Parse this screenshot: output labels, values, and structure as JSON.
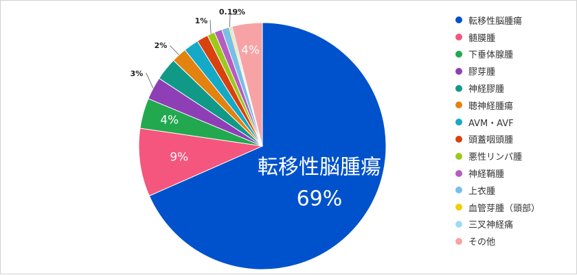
{
  "chart_data": {
    "type": "pie",
    "legend_position": "right",
    "slices": [
      {
        "name": "転移性脳腫瘍",
        "value": 69,
        "label": "転移性脳腫瘍",
        "value_label": "69%",
        "color": "#0052cc"
      },
      {
        "name": "髄膜腫",
        "value": 9,
        "value_label": "9%",
        "color": "#f4567d"
      },
      {
        "name": "下垂体腺腫",
        "value": 4,
        "value_label": "4%",
        "color": "#22a84f"
      },
      {
        "name": "膠芽腫",
        "value": 3,
        "value_label": "3%",
        "color": "#8e3fb5"
      },
      {
        "name": "神経膠腫",
        "value": 3,
        "color": "#119988"
      },
      {
        "name": "聴神経腫瘍",
        "value": 2,
        "value_label": "2%",
        "color": "#e3820f"
      },
      {
        "name": "AVM・AVF",
        "value": 2,
        "color": "#13a9c7"
      },
      {
        "name": "頭蓋咽頭腫",
        "value": 1.5,
        "color": "#d9410e"
      },
      {
        "name": "悪性リンパ腫",
        "value": 1,
        "value_label": "1%",
        "color": "#9cc91a"
      },
      {
        "name": "神経鞘腫",
        "value": 1,
        "color": "#b75cc0"
      },
      {
        "name": "上衣腫",
        "value": 1,
        "color": "#78bfe8"
      },
      {
        "name": "血管芽腫（頭部）",
        "value": 0.19,
        "value_label": "0.19%",
        "color": "#f3cd00"
      },
      {
        "name": "三叉神経痛",
        "value": 0.2,
        "color": "#9fdcf4"
      },
      {
        "name": "その他",
        "value": 4,
        "value_label": "4%",
        "color": "#f7a3a5"
      }
    ]
  }
}
